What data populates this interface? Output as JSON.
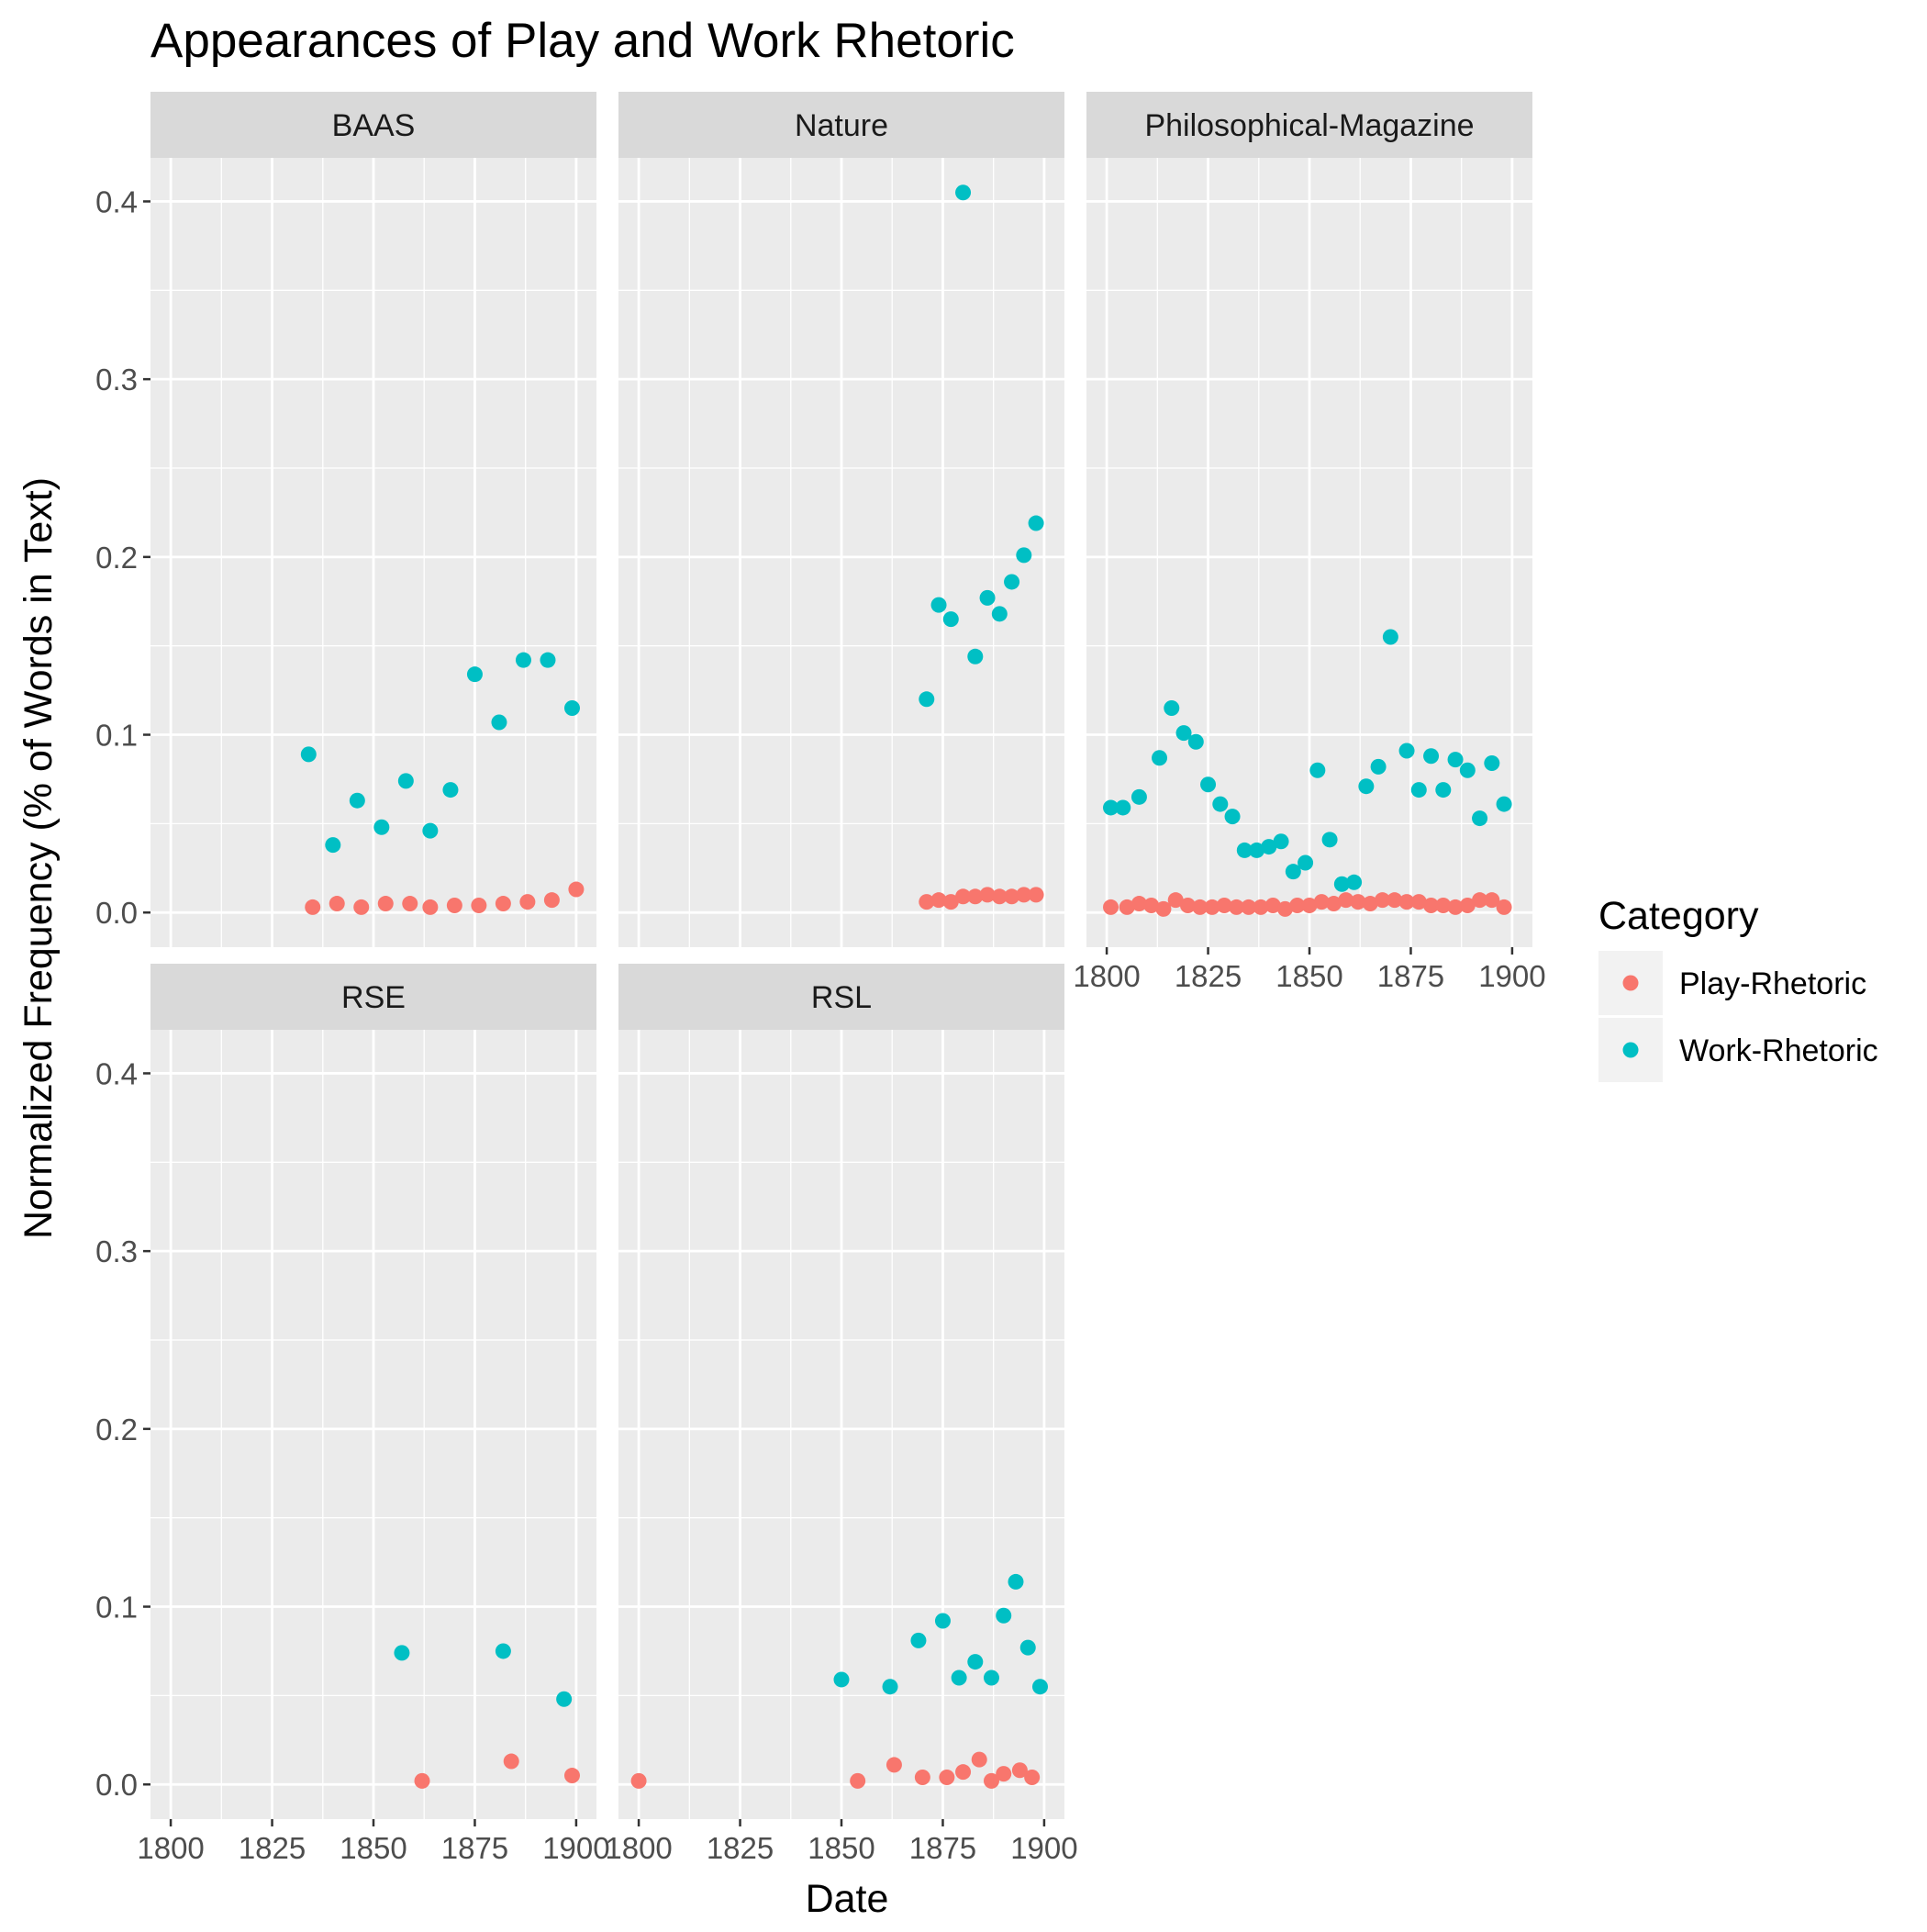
{
  "chart_data": {
    "type": "scatter",
    "title": "Appearances of Play and Work Rhetoric",
    "xlabel": "Date",
    "ylabel": "Normalized Frequency (% of Words in Text)",
    "xlim": [
      1795,
      1905
    ],
    "ylim": [
      -0.0195,
      0.4245
    ],
    "x_ticks": [
      1800,
      1825,
      1850,
      1875,
      1900
    ],
    "y_ticks": [
      0.0,
      0.1,
      0.2,
      0.3,
      0.4
    ],
    "x_tick_labels": [
      "1800",
      "1825",
      "1850",
      "1875",
      "1900"
    ],
    "y_tick_labels": [
      "0.0",
      "0.1",
      "0.2",
      "0.3",
      "0.4"
    ],
    "grid": true,
    "legend": {
      "title": "Category",
      "position": "right",
      "entries": [
        "Play-Rhetoric",
        "Work-Rhetoric"
      ]
    },
    "colors": {
      "Play-Rhetoric": "#F8766D",
      "Work-Rhetoric": "#00BFC4",
      "panel": "#EBEBEB",
      "strip": "#D9D9D9",
      "grid": "#FFFFFF"
    },
    "facets": [
      {
        "name": "BAAS",
        "series": [
          {
            "name": "Play-Rhetoric",
            "x": [
              1835,
              1841,
              1847,
              1853,
              1859,
              1864,
              1870,
              1876,
              1882,
              1888,
              1894,
              1900
            ],
            "y": [
              0.003,
              0.005,
              0.003,
              0.005,
              0.005,
              0.003,
              0.004,
              0.004,
              0.005,
              0.006,
              0.007,
              0.013
            ]
          },
          {
            "name": "Work-Rhetoric",
            "x": [
              1834,
              1840,
              1846,
              1852,
              1858,
              1864,
              1869,
              1875,
              1881,
              1887,
              1893,
              1899
            ],
            "y": [
              0.089,
              0.038,
              0.063,
              0.048,
              0.074,
              0.046,
              0.069,
              0.134,
              0.107,
              0.142,
              0.142,
              0.115
            ]
          }
        ]
      },
      {
        "name": "Nature",
        "series": [
          {
            "name": "Play-Rhetoric",
            "x": [
              1871,
              1874,
              1877,
              1880,
              1883,
              1886,
              1889,
              1892,
              1895,
              1898
            ],
            "y": [
              0.006,
              0.007,
              0.006,
              0.009,
              0.009,
              0.01,
              0.009,
              0.009,
              0.01,
              0.01
            ]
          },
          {
            "name": "Work-Rhetoric",
            "x": [
              1871,
              1874,
              1877,
              1880,
              1883,
              1886,
              1889,
              1892,
              1895,
              1898
            ],
            "y": [
              0.12,
              0.173,
              0.165,
              0.405,
              0.144,
              0.177,
              0.168,
              0.186,
              0.201,
              0.219
            ]
          }
        ]
      },
      {
        "name": "Philosophical-Magazine",
        "series": [
          {
            "name": "Play-Rhetoric",
            "x": [
              1801,
              1805,
              1808,
              1811,
              1814,
              1817,
              1820,
              1823,
              1826,
              1829,
              1832,
              1835,
              1838,
              1841,
              1844,
              1847,
              1850,
              1853,
              1856,
              1859,
              1862,
              1865,
              1868,
              1871,
              1874,
              1877,
              1880,
              1883,
              1886,
              1889,
              1892,
              1895,
              1898
            ],
            "y": [
              0.003,
              0.003,
              0.005,
              0.004,
              0.002,
              0.007,
              0.004,
              0.003,
              0.003,
              0.004,
              0.003,
              0.003,
              0.003,
              0.004,
              0.002,
              0.004,
              0.004,
              0.006,
              0.005,
              0.007,
              0.006,
              0.005,
              0.007,
              0.007,
              0.006,
              0.006,
              0.004,
              0.004,
              0.003,
              0.004,
              0.007,
              0.007,
              0.003
            ]
          },
          {
            "name": "Work-Rhetoric",
            "x": [
              1801,
              1804,
              1808,
              1813,
              1816,
              1819,
              1822,
              1825,
              1828,
              1831,
              1834,
              1837,
              1840,
              1843,
              1846,
              1849,
              1852,
              1855,
              1858,
              1861,
              1864,
              1867,
              1870,
              1874,
              1877,
              1880,
              1883,
              1886,
              1889,
              1892,
              1895,
              1898
            ],
            "y": [
              0.059,
              0.059,
              0.065,
              0.087,
              0.115,
              0.101,
              0.096,
              0.072,
              0.061,
              0.054,
              0.035,
              0.035,
              0.037,
              0.04,
              0.023,
              0.028,
              0.08,
              0.041,
              0.016,
              0.017,
              0.071,
              0.082,
              0.155,
              0.091,
              0.069,
              0.088,
              0.069,
              0.086,
              0.08,
              0.053,
              0.084,
              0.061
            ]
          }
        ]
      },
      {
        "name": "RSE",
        "series": [
          {
            "name": "Play-Rhetoric",
            "x": [
              1862,
              1884,
              1899
            ],
            "y": [
              0.002,
              0.013,
              0.005
            ]
          },
          {
            "name": "Work-Rhetoric",
            "x": [
              1857,
              1882,
              1897
            ],
            "y": [
              0.074,
              0.075,
              0.048
            ]
          }
        ]
      },
      {
        "name": "RSL",
        "series": [
          {
            "name": "Play-Rhetoric",
            "x": [
              1800,
              1854,
              1863,
              1870,
              1876,
              1880,
              1884,
              1887,
              1890,
              1894,
              1897
            ],
            "y": [
              0.002,
              0.002,
              0.011,
              0.004,
              0.004,
              0.007,
              0.014,
              0.002,
              0.006,
              0.008,
              0.004
            ]
          },
          {
            "name": "Work-Rhetoric",
            "x": [
              1850,
              1862,
              1869,
              1875,
              1879,
              1883,
              1887,
              1890,
              1893,
              1896,
              1899
            ],
            "y": [
              0.059,
              0.055,
              0.081,
              0.092,
              0.06,
              0.069,
              0.06,
              0.095,
              0.114,
              0.077,
              0.055
            ]
          }
        ]
      }
    ]
  }
}
